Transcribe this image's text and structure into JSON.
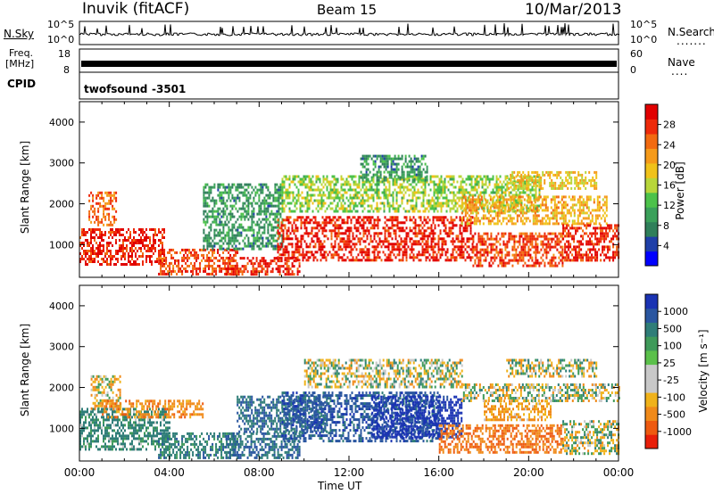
{
  "header": {
    "station": "Inuvik (fitACF)",
    "beam": "Beam 15",
    "date": "10/Mar/2013"
  },
  "panels": {
    "nsky": {
      "label": "N.Sky",
      "ticks": [
        "10^5",
        "10^0"
      ],
      "right_ticks": [
        "10^5",
        "10^0"
      ],
      "right_label": "N.Search",
      "right_dots": "......."
    },
    "freq": {
      "label_1": "Freq.",
      "label_2": "[MHz]",
      "ticks": [
        "18",
        "8"
      ],
      "right_ticks": [
        "60",
        "0"
      ],
      "right_label": "Nave",
      "right_dots": "...."
    },
    "cpid": {
      "label": "CPID",
      "program": "twofsound",
      "id": "-3501"
    }
  },
  "colors": {
    "power_scale": [
      "#0000ff",
      "#1f3fa8",
      "#2f7f5a",
      "#3aa05a",
      "#4cc24a",
      "#b8d63a",
      "#f0c21a",
      "#f59a1a",
      "#f26a10",
      "#ee2a0a",
      "#e10000"
    ],
    "velocity_scale": [
      "#1a33b3",
      "#2a56a0",
      "#2f7d78",
      "#3f9a5a",
      "#5bc04a",
      "#c8c8c8",
      "#c8c8c8",
      "#f0b21a",
      "#f08a1a",
      "#ee5a10",
      "#e81f0a"
    ]
  },
  "chart_data": [
    {
      "type": "heatmap",
      "panel": "power",
      "ylabel": "Slant Range [km]",
      "xlabel": "",
      "yticks": [
        "1000",
        "2000",
        "3000",
        "4000"
      ],
      "ylim": [
        200,
        4500
      ],
      "xlim": [
        0,
        24
      ],
      "colorbar": {
        "label": "Power [dB]",
        "ticks": [
          "28",
          "24",
          "20",
          "16",
          "12",
          "8",
          "4"
        ],
        "range": [
          0,
          30
        ]
      },
      "regions": [
        {
          "t0": 0.0,
          "t1": 3.8,
          "r0": 500,
          "r1": 1400,
          "value": 28
        },
        {
          "t0": 0.4,
          "t1": 1.6,
          "r0": 1500,
          "r1": 2300,
          "value": 24
        },
        {
          "t0": 3.5,
          "t1": 7.0,
          "r0": 300,
          "r1": 900,
          "value": 26
        },
        {
          "t0": 6.5,
          "t1": 9.8,
          "r0": 300,
          "r1": 700,
          "value": 28
        },
        {
          "t0": 5.5,
          "t1": 9.0,
          "r0": 900,
          "r1": 2500,
          "value": 8
        },
        {
          "t0": 8.8,
          "t1": 17.5,
          "r0": 600,
          "r1": 1700,
          "value": 28
        },
        {
          "t0": 9.0,
          "t1": 20.5,
          "r0": 1800,
          "r1": 2700,
          "value": 14
        },
        {
          "t0": 12.5,
          "t1": 15.5,
          "r0": 2600,
          "r1": 3200,
          "value": 8
        },
        {
          "t0": 17.0,
          "t1": 23.5,
          "r0": 1500,
          "r1": 2200,
          "value": 20
        },
        {
          "t0": 17.5,
          "t1": 21.5,
          "r0": 500,
          "r1": 1300,
          "value": 26
        },
        {
          "t0": 21.5,
          "t1": 24.0,
          "r0": 600,
          "r1": 1500,
          "value": 28
        },
        {
          "t0": 19.0,
          "t1": 23.0,
          "r0": 2400,
          "r1": 2800,
          "value": 18
        }
      ]
    },
    {
      "type": "heatmap",
      "panel": "velocity",
      "ylabel": "Slant Range [km]",
      "xlabel": "Time UT",
      "yticks": [
        "1000",
        "2000",
        "3000",
        "4000"
      ],
      "ylim": [
        200,
        4500
      ],
      "xlim": [
        0,
        24
      ],
      "xticks": [
        "00:00",
        "04:00",
        "08:00",
        "12:00",
        "16:00",
        "20:00",
        "00:00"
      ],
      "colorbar": {
        "label": "Velocity [m s⁻¹]",
        "ticks": [
          "1000",
          "500",
          "100",
          "25",
          "-25",
          "-100",
          "-500",
          "-1000"
        ],
        "range": [
          -1000,
          1000
        ]
      },
      "regions": [
        {
          "t0": 0.0,
          "t1": 4.0,
          "r0": 500,
          "r1": 1500,
          "value": 150
        },
        {
          "t0": 0.5,
          "t1": 1.8,
          "r0": 1500,
          "r1": 2300,
          "value": -50
        },
        {
          "t0": 1.0,
          "t1": 5.5,
          "r0": 1300,
          "r1": 1700,
          "value": -200
        },
        {
          "t0": 3.5,
          "t1": 7.0,
          "r0": 300,
          "r1": 900,
          "value": 200
        },
        {
          "t0": 6.5,
          "t1": 9.8,
          "r0": 300,
          "r1": 900,
          "value": 300
        },
        {
          "t0": 7.0,
          "t1": 11.0,
          "r0": 900,
          "r1": 1800,
          "value": 300
        },
        {
          "t0": 9.0,
          "t1": 16.0,
          "r0": 700,
          "r1": 1900,
          "value": 400
        },
        {
          "t0": 13.0,
          "t1": 17.0,
          "r0": 800,
          "r1": 1800,
          "value": 600
        },
        {
          "t0": 16.0,
          "t1": 21.5,
          "r0": 400,
          "r1": 1100,
          "value": -300
        },
        {
          "t0": 18.0,
          "t1": 21.0,
          "r0": 1200,
          "r1": 1700,
          "value": -150
        },
        {
          "t0": 17.0,
          "t1": 24.0,
          "r0": 1700,
          "r1": 2100,
          "value": 0
        },
        {
          "t0": 10.0,
          "t1": 17.0,
          "r0": 2000,
          "r1": 2700,
          "value": 0
        },
        {
          "t0": 21.5,
          "t1": 24.0,
          "r0": 400,
          "r1": 1200,
          "value": 0
        },
        {
          "t0": 19.0,
          "t1": 23.0,
          "r0": 2300,
          "r1": 2700,
          "value": 0
        }
      ]
    }
  ]
}
